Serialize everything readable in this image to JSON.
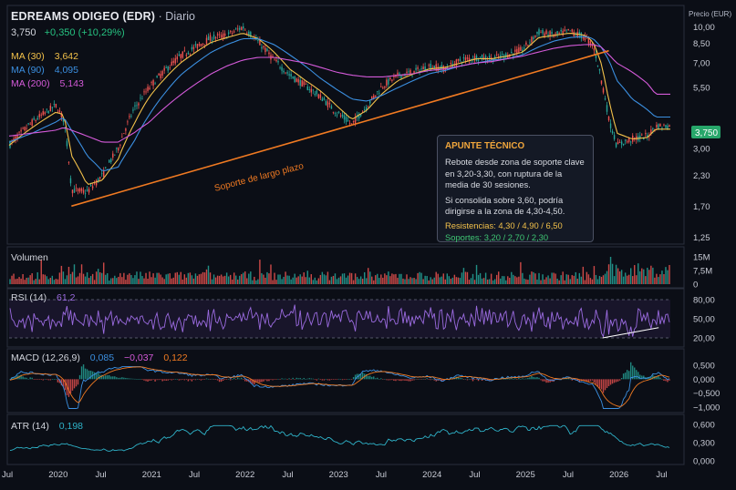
{
  "header": {
    "name": "EDREAMS ODIGEO (EDR)",
    "timeframe": "· Diario",
    "last": "3,750",
    "change": "+0,350 (+10,29%)"
  },
  "legend": {
    "ma30": {
      "label": "MA (30)",
      "value": "3,642",
      "color": "#f2c14a"
    },
    "ma90": {
      "label": "MA (90)",
      "value": "4,095",
      "color": "#3b8fe0"
    },
    "ma200": {
      "label": "MA (200)",
      "value": "5,143",
      "color": "#d45ad9"
    }
  },
  "price_axis": {
    "title": "Precio (EUR)",
    "ticks": [
      "10,00",
      "8,50",
      "7,00",
      "5,50",
      "3,00",
      "2,30",
      "1,70",
      "1,25"
    ],
    "tick_values": [
      10.0,
      8.5,
      7.0,
      5.5,
      3.0,
      2.3,
      1.7,
      1.25
    ],
    "last_badge": "3,750"
  },
  "trendline_label": "Soporte de largo plazo",
  "annotation": {
    "title": "APUNTE TÉCNICO",
    "text1": "Rebote desde zona de soporte clave en 3,20-3,30, con ruptura de la media de 30 sesiones.",
    "text2": "Si consolida sobre 3,60, podría dirigirse a la zona de 4,30-4,50.",
    "resistances": "Resistencias: 4,30 / 4,90 / 6,50",
    "supports": "Soportes: 3,20 / 2,70 / 2,30"
  },
  "volume": {
    "label": "Volumen",
    "ticks": [
      "15M",
      "7,5M",
      "0"
    ]
  },
  "rsi": {
    "label": "RSI (14)",
    "value": "61,2",
    "ticks": [
      "80,00",
      "50,00",
      "20,00"
    ]
  },
  "macd": {
    "label": "MACD (12,26,9)",
    "macd": "0,085",
    "signal": "−0,037",
    "hist": "0,122",
    "ticks": [
      "0,500",
      "0,000",
      "−0,500",
      "−1,000"
    ]
  },
  "atr": {
    "label": "ATR (14)",
    "value": "0,198",
    "ticks": [
      "0,600",
      "0,300",
      "0,000"
    ]
  },
  "time_axis": [
    "Jul",
    "2020",
    "Jul",
    "2021",
    "Jul",
    "2022",
    "Jul",
    "2023",
    "Jul",
    "2024",
    "Jul",
    "2025",
    "Jul",
    "2026",
    "Jul"
  ],
  "colors": {
    "up": "#26a69a",
    "down": "#ef5350",
    "ma30": "#f2c14a",
    "ma90": "#3b8fe0",
    "ma200": "#d45ad9",
    "trend": "#f07a22",
    "rsi": "#9b6be0",
    "macd": "#3b8fe0",
    "signal": "#f07a22",
    "atr": "#2fb3c9",
    "badge": "#27a66a"
  },
  "chart_data": {
    "type": "line",
    "title": "EDREAMS ODIGEO (EDR)",
    "x": [
      "2019-07",
      "2019-10",
      "2020-01",
      "2020-02",
      "2020-03",
      "2020-05",
      "2020-07",
      "2020-09",
      "2020-11",
      "2021-01",
      "2021-03",
      "2021-05",
      "2021-07",
      "2021-09",
      "2021-11",
      "2022-01",
      "2022-03",
      "2022-05",
      "2022-07",
      "2022-09",
      "2022-11",
      "2023-01",
      "2023-03",
      "2023-05",
      "2023-07",
      "2023-09",
      "2023-11",
      "2024-01",
      "2024-03",
      "2024-05",
      "2024-07",
      "2024-09",
      "2024-11",
      "2025-01",
      "2025-03",
      "2025-05",
      "2025-07",
      "2025-09",
      "2025-10",
      "2025-11",
      "2025-12",
      "2026-01",
      "2026-03",
      "2026-05",
      "2026-06"
    ],
    "series": [
      {
        "name": "EDREAMS ODIGEO (EDR)",
        "values": [
          3.1,
          3.9,
          4.6,
          4.0,
          2.0,
          1.95,
          2.3,
          3.0,
          4.4,
          5.5,
          6.5,
          7.5,
          8.2,
          9.0,
          9.2,
          10.0,
          8.6,
          7.2,
          6.2,
          5.6,
          5.0,
          4.3,
          3.8,
          4.6,
          5.6,
          6.2,
          6.4,
          6.8,
          6.6,
          7.2,
          7.4,
          7.3,
          7.6,
          8.0,
          9.5,
          9.2,
          9.6,
          9.0,
          8.3,
          6.0,
          4.0,
          3.1,
          3.3,
          3.4,
          3.75
        ]
      },
      {
        "name": "MA (30)",
        "values": [
          3.1,
          3.7,
          4.3,
          4.2,
          2.8,
          2.1,
          2.2,
          2.7,
          3.8,
          5.0,
          6.0,
          7.0,
          7.8,
          8.6,
          9.0,
          9.4,
          8.9,
          7.8,
          6.6,
          5.9,
          5.3,
          4.6,
          4.0,
          4.4,
          5.2,
          5.9,
          6.3,
          6.6,
          6.7,
          7.0,
          7.3,
          7.3,
          7.5,
          7.8,
          9.0,
          9.2,
          9.4,
          9.2,
          8.6,
          7.0,
          4.8,
          3.5,
          3.3,
          3.35,
          3.64
        ]
      },
      {
        "name": "MA (90)",
        "values": [
          3.2,
          3.5,
          3.9,
          4.1,
          3.6,
          2.8,
          2.4,
          2.5,
          3.2,
          4.2,
          5.2,
          6.2,
          7.0,
          7.8,
          8.4,
          8.9,
          8.9,
          8.4,
          7.6,
          6.8,
          6.0,
          5.4,
          4.9,
          4.8,
          5.1,
          5.5,
          5.9,
          6.3,
          6.5,
          6.8,
          7.0,
          7.2,
          7.3,
          7.6,
          8.2,
          8.7,
          9.0,
          9.1,
          8.9,
          8.2,
          7.2,
          5.9,
          4.9,
          4.4,
          4.1
        ]
      },
      {
        "name": "MA (200)",
        "values": [
          3.4,
          3.5,
          3.6,
          3.7,
          3.6,
          3.4,
          3.2,
          3.2,
          3.5,
          3.9,
          4.5,
          5.1,
          5.7,
          6.3,
          6.8,
          7.2,
          7.4,
          7.4,
          7.2,
          7.0,
          6.7,
          6.4,
          6.2,
          6.1,
          6.1,
          6.2,
          6.3,
          6.5,
          6.6,
          6.8,
          7.0,
          7.1,
          7.3,
          7.5,
          7.8,
          8.1,
          8.3,
          8.4,
          8.4,
          8.2,
          7.6,
          7.0,
          6.4,
          5.7,
          5.143
        ]
      }
    ],
    "trendline": {
      "from": [
        "2020-03",
        1.7
      ],
      "to": [
        "2025-12",
        7.9
      ],
      "label": "Soporte de largo plazo"
    },
    "ylabel": "Precio (EUR)",
    "ylim": [
      1.2,
      11.5
    ],
    "yscale": "log",
    "grid": false,
    "legend": "top-left"
  }
}
